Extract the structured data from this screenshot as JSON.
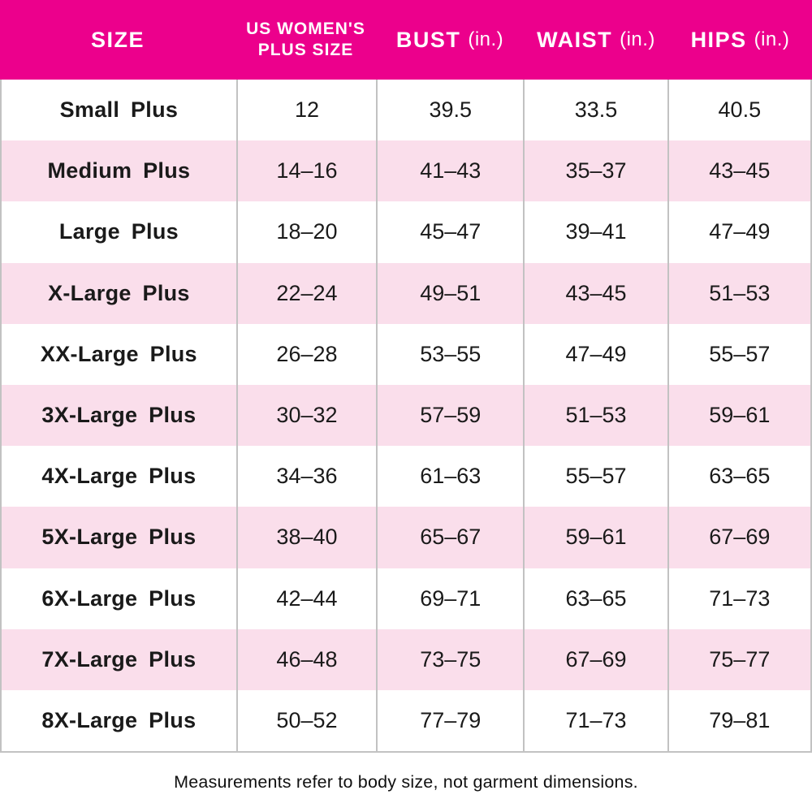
{
  "colors": {
    "header_bg": "#EC008C",
    "header_text": "#FFFFFF",
    "row_stripe_pink": "#FADEEB",
    "row_plain": "#FFFFFF",
    "grid_line": "#C2C2C2",
    "body_text": "#1A1A1A"
  },
  "header": {
    "columns": [
      {
        "title": "SIZE",
        "unit": ""
      },
      {
        "title": "US WOMEN'S\nPLUS SIZE",
        "unit": ""
      },
      {
        "title": "BUST",
        "unit": "(in.)"
      },
      {
        "title": "WAIST",
        "unit": "(in.)"
      },
      {
        "title": "HIPS",
        "unit": "(in.)"
      }
    ]
  },
  "chart_data": {
    "type": "table",
    "columns": [
      "SIZE",
      "US WOMEN'S PLUS SIZE",
      "BUST (in.)",
      "WAIST (in.)",
      "HIPS (in.)"
    ],
    "rows": [
      [
        "Small Plus",
        "12",
        "39.5",
        "33.5",
        "40.5"
      ],
      [
        "Medium Plus",
        "14–16",
        "41–43",
        "35–37",
        "43–45"
      ],
      [
        "Large Plus",
        "18–20",
        "45–47",
        "39–41",
        "47–49"
      ],
      [
        "X-Large Plus",
        "22–24",
        "49–51",
        "43–45",
        "51–53"
      ],
      [
        "XX-Large Plus",
        "26–28",
        "53–55",
        "47–49",
        "55–57"
      ],
      [
        "3X-Large Plus",
        "30–32",
        "57–59",
        "51–53",
        "59–61"
      ],
      [
        "4X-Large Plus",
        "34–36",
        "61–63",
        "55–57",
        "63–65"
      ],
      [
        "5X-Large Plus",
        "38–40",
        "65–67",
        "59–61",
        "67–69"
      ],
      [
        "6X-Large Plus",
        "42–44",
        "69–71",
        "63–65",
        "71–73"
      ],
      [
        "7X-Large Plus",
        "46–48",
        "73–75",
        "67–69",
        "75–77"
      ],
      [
        "8X-Large Plus",
        "50–52",
        "77–79",
        "71–73",
        "79–81"
      ]
    ],
    "footnote": "Measurements refer to body size, not garment dimensions."
  },
  "footer": {
    "note": "Measurements refer to body size, not garment dimensions."
  }
}
